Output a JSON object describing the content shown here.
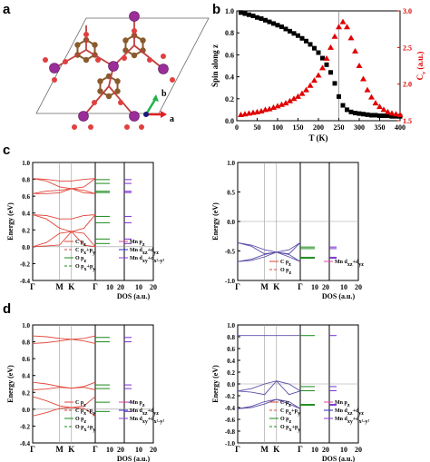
{
  "panel_letters": {
    "a": "a",
    "b": "b",
    "c": "c",
    "d": "d"
  },
  "structure_axes": {
    "b": "b",
    "a": "a"
  },
  "chart_data": [
    {
      "panel": "b",
      "type": "scatter",
      "xlabel": "T (K)",
      "ylabel": "Spin along z",
      "y2label": "C",
      "y2label_sub": "v",
      "y2label_unit": "(a.u.)",
      "xlim": [
        0,
        400
      ],
      "ylim": [
        0.0,
        1.0
      ],
      "y2lim": [
        1.5,
        3.0
      ],
      "x_ticks": [
        "0",
        "50",
        "100",
        "150",
        "200",
        "250",
        "300",
        "350",
        "400"
      ],
      "y_ticks": [
        "0.0",
        "0.2",
        "0.4",
        "0.6",
        "0.8",
        "1.0"
      ],
      "y2_ticks": [
        "1.5",
        "2.0",
        "2.5",
        "3.0"
      ],
      "vline_x": 250,
      "series": [
        {
          "marker": "square",
          "color": "#000000",
          "axis": "left",
          "x": [
            10,
            20,
            30,
            40,
            50,
            60,
            70,
            80,
            90,
            100,
            110,
            120,
            130,
            140,
            150,
            160,
            170,
            180,
            190,
            200,
            210,
            220,
            230,
            240,
            250,
            260,
            270,
            280,
            290,
            300,
            310,
            320,
            330,
            340,
            350,
            360,
            370,
            380,
            390,
            400
          ],
          "y": [
            0.985,
            0.975,
            0.965,
            0.955,
            0.94,
            0.93,
            0.915,
            0.9,
            0.885,
            0.87,
            0.855,
            0.835,
            0.815,
            0.795,
            0.775,
            0.75,
            0.725,
            0.695,
            0.66,
            0.62,
            0.57,
            0.51,
            0.44,
            0.34,
            0.22,
            0.14,
            0.1,
            0.08,
            0.07,
            0.065,
            0.06,
            0.055,
            0.05,
            0.05,
            0.045,
            0.045,
            0.045,
            0.04,
            0.04,
            0.04
          ]
        },
        {
          "marker": "triangle",
          "color": "#e00000",
          "axis": "right",
          "x": [
            10,
            20,
            30,
            40,
            50,
            60,
            70,
            80,
            90,
            100,
            110,
            120,
            130,
            140,
            150,
            160,
            170,
            180,
            190,
            200,
            210,
            220,
            230,
            240,
            250,
            260,
            270,
            280,
            290,
            300,
            310,
            320,
            330,
            340,
            350,
            360,
            370,
            380,
            390,
            400
          ],
          "y": [
            1.58,
            1.59,
            1.6,
            1.61,
            1.62,
            1.63,
            1.65,
            1.66,
            1.68,
            1.7,
            1.72,
            1.74,
            1.77,
            1.8,
            1.83,
            1.87,
            1.92,
            1.98,
            2.05,
            2.12,
            2.22,
            2.35,
            2.5,
            2.65,
            2.78,
            2.85,
            2.78,
            2.63,
            2.45,
            2.25,
            2.07,
            1.92,
            1.82,
            1.74,
            1.69,
            1.65,
            1.62,
            1.6,
            1.59,
            1.58
          ]
        }
      ]
    },
    {
      "panel": "c-left",
      "type": "line",
      "ylabel": "Energy (eV)",
      "xlabel": "DOS (a.u.)",
      "ylim": [
        -0.4,
        1.0
      ],
      "y_ticks": [
        "-0.4",
        "-0.2",
        "0.0",
        "0.2",
        "0.4",
        "0.6",
        "0.8",
        "1.0"
      ],
      "kpath": [
        "Γ",
        "M",
        "K",
        "Γ"
      ],
      "dos_ticks": [
        "10",
        "20",
        "0",
        "10",
        "20"
      ],
      "bands_color": "#e0463a",
      "bands": [
        [
          0.38,
          0.33,
          0.22,
          0.18,
          0.22,
          0.38
        ],
        [
          0.38,
          0.37,
          0.33,
          0.33,
          0.37,
          0.38
        ],
        [
          0.0,
          0.05,
          0.16,
          0.18,
          0.16,
          0.0
        ],
        [
          0.0,
          0.01,
          0.02,
          0.18,
          0.02,
          0.0
        ],
        [
          0.81,
          0.78,
          0.71,
          0.69,
          0.71,
          0.81
        ],
        [
          0.81,
          0.8,
          0.78,
          0.78,
          0.8,
          0.81
        ],
        [
          0.63,
          0.66,
          0.67,
          0.69,
          0.67,
          0.63
        ],
        [
          0.63,
          0.63,
          0.64,
          0.69,
          0.64,
          0.63
        ]
      ],
      "legend_left": [
        "C p",
        "C p+p",
        "O p",
        "O p+p"
      ],
      "legend_left_subs": [
        [
          "z"
        ],
        [
          "x",
          "y"
        ],
        [
          "z"
        ],
        [
          "x",
          "y"
        ]
      ],
      "legend_right": [
        "Mn p",
        "Mn d+d",
        "Mn d+d"
      ],
      "legend_right_subs": [
        [
          "z"
        ],
        [
          "xz",
          "yz"
        ],
        [
          "xy",
          "x²-y²"
        ]
      ]
    },
    {
      "panel": "c-right",
      "type": "line",
      "ylabel": "Energy (eV)",
      "xlabel": "DOS (a.u.)",
      "ylim": [
        -1.0,
        1.0
      ],
      "y_ticks": [
        "-1.0",
        "-0.5",
        "0.0",
        "0.5",
        "1.0"
      ],
      "kpath": [
        "Γ",
        "M",
        "K",
        "Γ"
      ],
      "dos_ticks": [
        "10",
        "20",
        "0",
        "10",
        "20"
      ],
      "bands_color": "#5b4ea8",
      "bands": [
        [
          -0.36,
          -0.4,
          -0.48,
          -0.52,
          -0.48,
          -0.36
        ],
        [
          -0.36,
          -0.42,
          -0.55,
          -0.52,
          -0.55,
          -0.36
        ],
        [
          -0.68,
          -0.64,
          -0.56,
          -0.52,
          -0.56,
          -0.68
        ],
        [
          -0.68,
          -0.66,
          -0.6,
          -0.52,
          -0.6,
          -0.68
        ]
      ],
      "legend_left": [
        "C p",
        "O p"
      ],
      "legend_left_subs": [
        [
          "z"
        ],
        [
          "z"
        ]
      ],
      "legend_right": [
        "Mn d+d"
      ],
      "legend_right_subs": [
        [
          "xz",
          "yz"
        ]
      ]
    },
    {
      "panel": "d-left",
      "type": "line",
      "ylabel": "Energy (eV)",
      "xlabel": "DOS (a.u.)",
      "ylim": [
        -0.4,
        1.0
      ],
      "y_ticks": [
        "-0.4",
        "-0.2",
        "0.0",
        "0.2",
        "0.4",
        "0.6",
        "0.8",
        "1.0"
      ],
      "kpath": [
        "Γ",
        "M",
        "K",
        "Γ"
      ],
      "dos_ticks": [
        "10",
        "20",
        "0",
        "10",
        "20"
      ],
      "bands_color": "#e0463a",
      "bands": [
        [
          0.32,
          0.3,
          0.27,
          0.25,
          0.27,
          0.32
        ],
        [
          0.23,
          0.24,
          0.26,
          0.25,
          0.26,
          0.23
        ],
        [
          0.15,
          0.1,
          0.04,
          0.02,
          0.04,
          0.15
        ],
        [
          -0.08,
          -0.04,
          0.01,
          0.02,
          0.01,
          -0.08
        ],
        [
          0.87,
          0.86,
          0.84,
          0.83,
          0.84,
          0.87
        ],
        [
          0.78,
          0.79,
          0.81,
          0.83,
          0.81,
          0.78
        ]
      ],
      "legend_left": [
        "C p",
        "C p+p",
        "O p",
        "O p+p"
      ],
      "legend_left_subs": [
        [
          "z"
        ],
        [
          "x",
          "y"
        ],
        [
          "z"
        ],
        [
          "x",
          "y"
        ]
      ],
      "legend_right": [
        "Mn p",
        "Mn d+d",
        "Mn d+d"
      ],
      "legend_right_subs": [
        [
          "z"
        ],
        [
          "xz",
          "yz"
        ],
        [
          "xy",
          "x²-y²"
        ]
      ]
    },
    {
      "panel": "d-right",
      "type": "line",
      "ylabel": "Energy (eV)",
      "xlabel": "DOS (a.u.)",
      "ylim": [
        -1.0,
        1.0
      ],
      "y_ticks": [
        "-1.0",
        "-0.8",
        "-0.6",
        "-0.4",
        "-0.2",
        "0.0",
        "0.2",
        "0.4",
        "0.6",
        "0.8",
        "1.0"
      ],
      "kpath": [
        "Γ",
        "M",
        "K",
        "Γ"
      ],
      "dos_ticks": [
        "10",
        "20",
        "0",
        "10",
        "20"
      ],
      "bands_color": "#5b4ea8",
      "bands": [
        [
          -0.12,
          -0.08,
          0.0,
          0.05,
          0.0,
          -0.12
        ],
        [
          -0.12,
          -0.14,
          -0.18,
          0.05,
          -0.18,
          -0.12
        ],
        [
          -0.42,
          -0.38,
          -0.3,
          -0.26,
          -0.3,
          -0.42
        ],
        [
          -0.42,
          -0.4,
          -0.34,
          -0.26,
          -0.34,
          -0.42
        ],
        [
          0.82,
          0.82,
          0.82,
          0.82,
          0.82,
          0.82
        ]
      ],
      "legend_left": [
        "C p",
        "C p+p",
        "O p",
        "O p+p"
      ],
      "legend_left_subs": [
        [
          "z"
        ],
        [
          "x",
          "y"
        ],
        [
          "z"
        ],
        [
          "x",
          "y"
        ]
      ],
      "legend_right": [
        "Mn p",
        "Mn d+d",
        "Mn d+d"
      ],
      "legend_right_subs": [
        [
          "z"
        ],
        [
          "xz",
          "yz"
        ],
        [
          "xy",
          "x²-y²"
        ]
      ]
    }
  ]
}
